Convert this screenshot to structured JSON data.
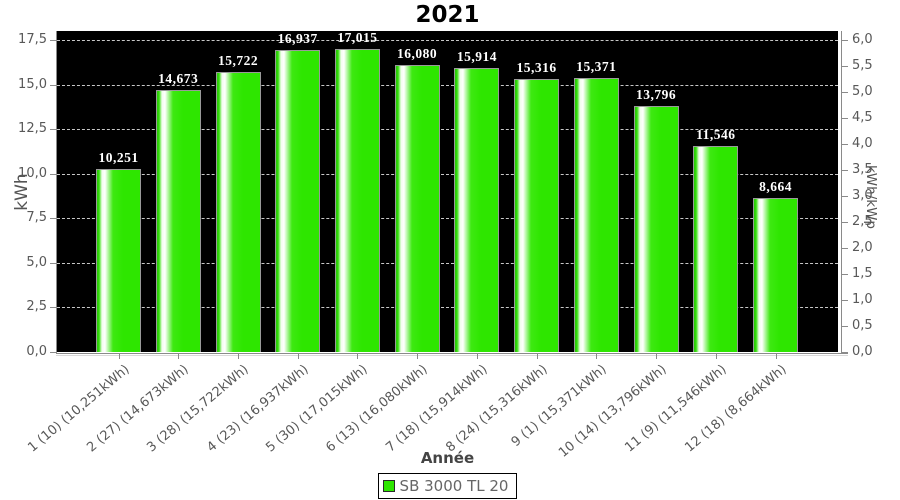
{
  "chart_data": {
    "type": "bar",
    "title": "2021",
    "xlabel": "Année",
    "ylabel_left": "kWh",
    "ylabel_right": "kWh/kWp",
    "legend": {
      "label": "SB 3000 TL 20",
      "color": "#2ee600"
    },
    "categories": [
      "1 (10) (10,251kWh)",
      "2 (27) (14,673kWh)",
      "3 (28) (15,722kWh)",
      "4 (23) (16,937kWh)",
      "5 (30) (17,015kWh)",
      "6 (13) (16,080kWh)",
      "7 (18) (15,914kWh)",
      "8 (24) (15,316kWh)",
      "9 (1) (15,371kWh)",
      "10 (14) (13,796kWh)",
      "11 (9) (11,546kWh)",
      "12 (18) (8,664kWh)"
    ],
    "values": [
      10.251,
      14.673,
      15.722,
      16.937,
      17.015,
      16.08,
      15.914,
      15.316,
      15.371,
      13.796,
      11.546,
      8.664
    ],
    "value_labels": [
      "10,251",
      "14,673",
      "15,722",
      "16,937",
      "17,015",
      "16,080",
      "15,914",
      "15,316",
      "15,371",
      "13,796",
      "11,546",
      "8,664"
    ],
    "y_left_axis": {
      "min": 0,
      "max_visible_tick": 17.5,
      "ticks": [
        {
          "v": 0.0,
          "label": "0,0"
        },
        {
          "v": 2.5,
          "label": "2,5"
        },
        {
          "v": 5.0,
          "label": "5,0"
        },
        {
          "v": 7.5,
          "label": "7,5"
        },
        {
          "v": 10.0,
          "label": "10,0"
        },
        {
          "v": 12.5,
          "label": "12,5"
        },
        {
          "v": 15.0,
          "label": "15,0"
        },
        {
          "v": 17.5,
          "label": "17,5"
        }
      ]
    },
    "y_right_axis": {
      "min": 0,
      "max_visible_tick": 6.0,
      "ticks": [
        {
          "v": 0.0,
          "label": "0,0"
        },
        {
          "v": 0.5,
          "label": "0,5"
        },
        {
          "v": 1.0,
          "label": "1,0"
        },
        {
          "v": 1.5,
          "label": "1,5"
        },
        {
          "v": 2.0,
          "label": "2,0"
        },
        {
          "v": 2.5,
          "label": "2,5"
        },
        {
          "v": 3.0,
          "label": "3,0"
        },
        {
          "v": 3.5,
          "label": "3,5"
        },
        {
          "v": 4.0,
          "label": "4,0"
        },
        {
          "v": 4.5,
          "label": "4,5"
        },
        {
          "v": 5.0,
          "label": "5,0"
        },
        {
          "v": 5.5,
          "label": "5,5"
        },
        {
          "v": 6.0,
          "label": "6,0"
        }
      ]
    },
    "grid_values": [
      2.5,
      5.0,
      7.5,
      10.0,
      12.5,
      15.0,
      17.5
    ],
    "layout_hints": {
      "grid": "horizontal-dashed",
      "legend_position": "bottom-center"
    },
    "colors": {
      "bar": "#2ee600",
      "bar_highlight": "#ffffff",
      "plot_background": "#000000",
      "gridline": "#c8c8c8",
      "axis": "#8a8a8a",
      "tick_text": "#585858",
      "value_text": "#ffffff",
      "title_text": "#000000"
    }
  }
}
